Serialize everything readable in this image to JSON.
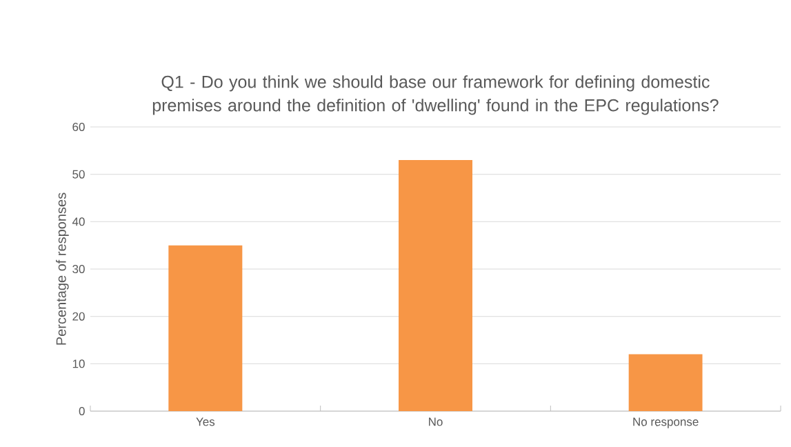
{
  "chart_data": {
    "type": "bar",
    "title": "Q1 - Do you think we should base our framework for defining domestic premises around the definition of 'dwelling' found in the EPC regulations?",
    "ylabel": "Percentage  of responses",
    "categories": [
      "Yes",
      "No",
      "No response"
    ],
    "values": [
      35,
      53,
      12
    ],
    "color": "#f79646",
    "ylim": [
      0,
      60
    ],
    "yticks": [
      0,
      10,
      20,
      30,
      40,
      50,
      60
    ],
    "grid": "y"
  }
}
